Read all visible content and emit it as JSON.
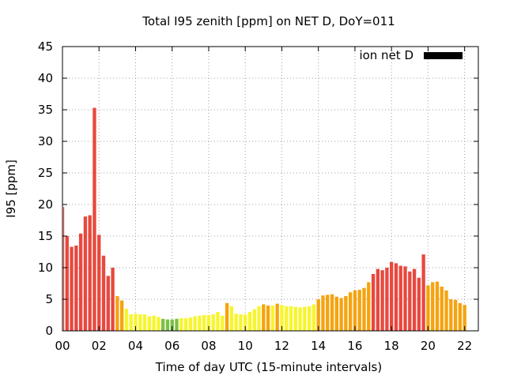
{
  "chart_data": {
    "type": "bar",
    "title": "Total I95 zenith [ppm] on NET D, DoY=011",
    "xlabel": "Time of day UTC (15-minute intervals)",
    "ylabel": "I95 [ppm]",
    "ylim": [
      0,
      45
    ],
    "xlim": [
      0,
      22.75
    ],
    "grid": true,
    "y_ticks": [
      "0",
      "5",
      "10",
      "15",
      "20",
      "25",
      "30",
      "35",
      "40",
      "45"
    ],
    "x_ticks": [
      "00",
      "02",
      "04",
      "06",
      "08",
      "10",
      "12",
      "14",
      "16",
      "18",
      "20",
      "22"
    ],
    "interval_hours": 0.25,
    "series": [
      {
        "name": "ion net D",
        "color": "#000000",
        "values": [
          19.6,
          15.0,
          13.3,
          13.5,
          15.4,
          18.1,
          18.3,
          35.3,
          15.2,
          11.9,
          8.7,
          10.0,
          5.5,
          4.8,
          3.5,
          2.6,
          2.7,
          2.6,
          2.6,
          2.3,
          2.4,
          2.2,
          1.9,
          1.8,
          1.8,
          1.9,
          2.0,
          2.0,
          2.1,
          2.3,
          2.4,
          2.5,
          2.5,
          2.6,
          3.0,
          2.4,
          4.4,
          3.9,
          2.7,
          2.6,
          2.6,
          3.0,
          3.4,
          3.9,
          4.2,
          4.0,
          4.0,
          4.3,
          4.1,
          3.9,
          3.9,
          3.8,
          3.7,
          3.8,
          3.9,
          4.2,
          5.0,
          5.6,
          5.7,
          5.8,
          5.4,
          5.2,
          5.5,
          6.1,
          6.4,
          6.5,
          6.8,
          7.7,
          9.0,
          9.8,
          9.6,
          10.0,
          10.9,
          10.7,
          10.3,
          10.2,
          9.4,
          9.8,
          8.4,
          12.1,
          7.2,
          7.7,
          7.8,
          7.0,
          6.4,
          5.0,
          4.9,
          4.4,
          4.1
        ],
        "bar_colors": [
          "#e8483e",
          "#e8483e",
          "#e8483e",
          "#e8483e",
          "#e8483e",
          "#e8483e",
          "#e8483e",
          "#e8483e",
          "#e8483e",
          "#e8483e",
          "#e8483e",
          "#e8483e",
          "#f5a30f",
          "#f5a30f",
          "#f7f52c",
          "#f7f52c",
          "#f7f52c",
          "#f7f52c",
          "#f7f52c",
          "#f7f52c",
          "#f7f52c",
          "#f7f52c",
          "#7bc043",
          "#7bc043",
          "#7bc043",
          "#7bc043",
          "#f7f52c",
          "#f7f52c",
          "#f7f52c",
          "#f7f52c",
          "#f7f52c",
          "#f7f52c",
          "#f7f52c",
          "#f7f52c",
          "#f7f52c",
          "#f7f52c",
          "#f5a30f",
          "#f7f52c",
          "#f7f52c",
          "#f7f52c",
          "#f7f52c",
          "#f7f52c",
          "#f7f52c",
          "#f7f52c",
          "#f5a30f",
          "#f5a30f",
          "#f7f52c",
          "#f5a30f",
          "#f7f52c",
          "#f7f52c",
          "#f7f52c",
          "#f7f52c",
          "#f7f52c",
          "#f7f52c",
          "#f7f52c",
          "#f7f52c",
          "#f5a30f",
          "#f5a30f",
          "#f5a30f",
          "#f5a30f",
          "#f5a30f",
          "#f5a30f",
          "#f5a30f",
          "#f5a30f",
          "#f5a30f",
          "#f5a30f",
          "#f5a30f",
          "#f5a30f",
          "#e8483e",
          "#e8483e",
          "#e8483e",
          "#e8483e",
          "#e8483e",
          "#e8483e",
          "#e8483e",
          "#e8483e",
          "#e8483e",
          "#e8483e",
          "#e8483e",
          "#e8483e",
          "#f5a30f",
          "#f5a30f",
          "#f5a30f",
          "#f5a30f",
          "#f5a30f",
          "#f5a30f",
          "#f5a30f",
          "#f5a30f",
          "#f5a30f"
        ]
      }
    ],
    "legend": {
      "label": "ion net D",
      "position": "top-right"
    }
  }
}
